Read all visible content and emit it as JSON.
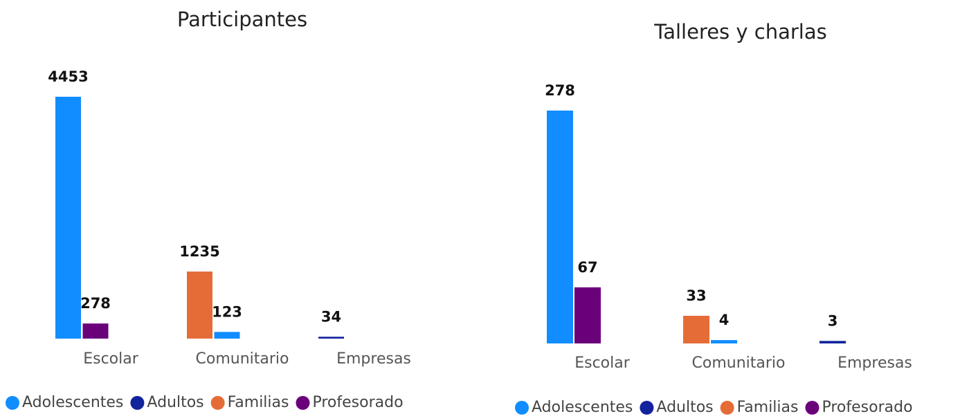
{
  "chart_data": [
    {
      "type": "bar",
      "title": "Participantes",
      "categories": [
        "Escolar",
        "Comunitario",
        "Empresas"
      ],
      "series": [
        {
          "name": "Adolescentes",
          "color": "#118DFF",
          "values": [
            4453,
            123,
            null
          ]
        },
        {
          "name": "Adultos",
          "color": "#12239E",
          "values": [
            null,
            null,
            34
          ]
        },
        {
          "name": "Familias",
          "color": "#E66C37",
          "values": [
            null,
            1235,
            null
          ]
        },
        {
          "name": "Profesorado",
          "color": "#6B007B",
          "values": [
            278,
            null,
            null
          ]
        }
      ]
    },
    {
      "type": "bar",
      "title": "Talleres y charlas",
      "categories": [
        "Escolar",
        "Comunitario",
        "Empresas"
      ],
      "series": [
        {
          "name": "Adolescentes",
          "color": "#118DFF",
          "values": [
            278,
            4,
            null
          ]
        },
        {
          "name": "Adultos",
          "color": "#12239E",
          "values": [
            null,
            null,
            3
          ]
        },
        {
          "name": "Familias",
          "color": "#E66C37",
          "values": [
            null,
            33,
            null
          ]
        },
        {
          "name": "Profesorado",
          "color": "#6B007B",
          "values": [
            67,
            null,
            null
          ]
        }
      ]
    }
  ]
}
